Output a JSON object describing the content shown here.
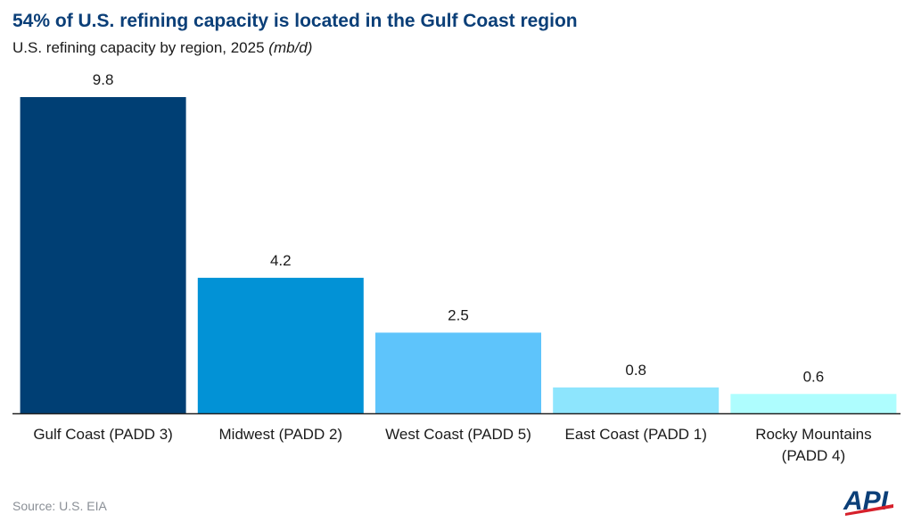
{
  "header": {
    "title": "54% of U.S. refining capacity is located in the Gulf Coast region",
    "subtitle": "U.S. refining capacity by region, 2025",
    "unit": "(mb/d)"
  },
  "footer": {
    "source": "Source: U.S. EIA",
    "logo_text": "API"
  },
  "chart_data": {
    "type": "bar",
    "title": "54% of U.S. refining capacity is located in the Gulf Coast region",
    "subtitle": "U.S. refining capacity by region, 2025 (mb/d)",
    "categories": [
      [
        "Gulf Coast (PADD 3)"
      ],
      [
        "Midwest (PADD 2)"
      ],
      [
        "West Coast (PADD 5)"
      ],
      [
        "East Coast (PADD 1)"
      ],
      [
        "Rocky Mountains",
        "(PADD 4)"
      ]
    ],
    "values": [
      9.8,
      4.2,
      2.5,
      0.8,
      0.6
    ],
    "data_labels": [
      "9.8",
      "4.2",
      "2.5",
      "0.8",
      "0.6"
    ],
    "colors": [
      "#003f74",
      "#0292d6",
      "#5ec4fb",
      "#8de5fd",
      "#aefdfe"
    ],
    "ylim": [
      0,
      9.8
    ],
    "grid": false,
    "legend": "none",
    "xlabel": "",
    "ylabel": ""
  }
}
